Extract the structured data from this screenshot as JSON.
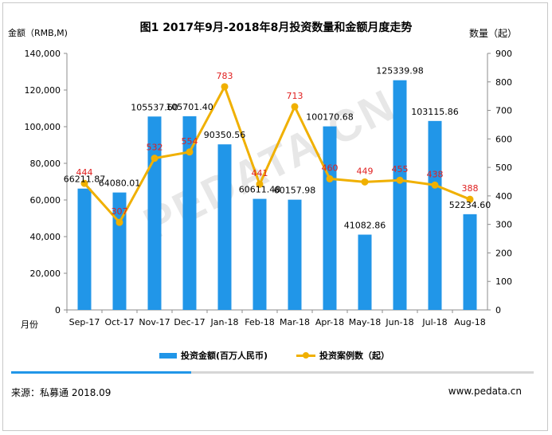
{
  "title": "图1 2017年9月-2018年8月投资数量和金额月度走势",
  "left_axis_label": "金额（RMB,M)",
  "right_axis_label": "数量（起）",
  "x_unit_label": "月份",
  "watermark": "PEDATA.CN",
  "source": "来源：私募通 2018.09",
  "site": "www.pedata.cn",
  "colors": {
    "bar": "#2196e8",
    "line": "#f0b000",
    "line_label": "#e02020",
    "accent": "#2196e8"
  },
  "chart_data": {
    "type": "bar+line",
    "categories": [
      "Sep-17",
      "Oct-17",
      "Nov-17",
      "Dec-17",
      "Jan-18",
      "Feb-18",
      "Mar-18",
      "Apr-18",
      "May-18",
      "Jun-18",
      "Jul-18",
      "Aug-18"
    ],
    "series": [
      {
        "name": "投资金额(百万人民币)",
        "type": "bar",
        "axis": "left",
        "values": [
          66211.87,
          64080.01,
          105537.6,
          105701.4,
          90350.56,
          60611.48,
          60157.98,
          100170.68,
          41082.86,
          125339.98,
          103115.86,
          52234.6
        ],
        "labels": [
          "66211.87",
          "64080.01",
          "105537.60",
          "105701.40",
          "90350.56",
          "60611.48",
          "60157.98",
          "100170.68",
          "41082.86",
          "125339.98",
          "103115.86",
          "52234.60"
        ]
      },
      {
        "name": "投资案例数（起）",
        "type": "line",
        "axis": "right",
        "values": [
          444,
          307,
          532,
          554,
          783,
          441,
          713,
          460,
          449,
          455,
          438,
          388
        ],
        "labels": [
          "444",
          "307",
          "532",
          "554",
          "783",
          "441",
          "713",
          "460",
          "449",
          "455",
          "438",
          "388"
        ]
      }
    ],
    "left_axis": {
      "min": 0,
      "max": 140000,
      "ticks": [
        "0",
        "20,000",
        "40,000",
        "60,000",
        "80,000",
        "100,000",
        "120,000",
        "140,000"
      ]
    },
    "right_axis": {
      "min": 0,
      "max": 900,
      "ticks": [
        "0",
        "100",
        "200",
        "300",
        "400",
        "500",
        "600",
        "700",
        "800",
        "900"
      ]
    },
    "grid": false,
    "legend": "bottom"
  }
}
